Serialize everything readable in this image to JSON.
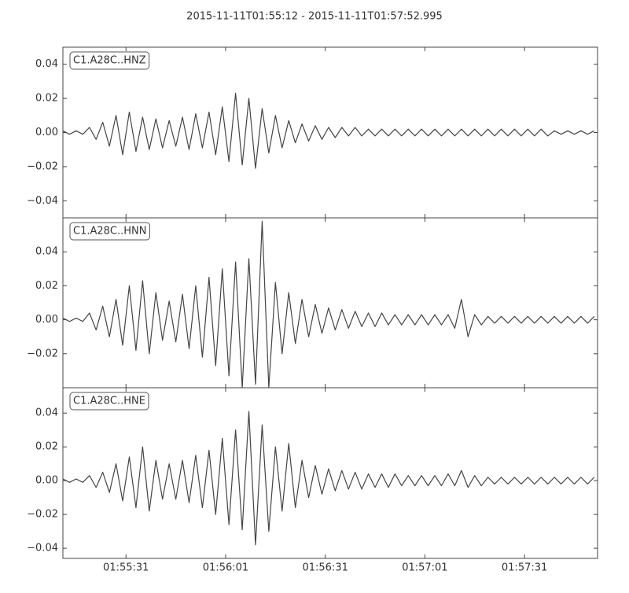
{
  "title": "2015-11-11T01:55:12  -  2015-11-11T01:57:52.995",
  "chart_data": [
    {
      "type": "line",
      "label": "C1.A28C..HNZ",
      "color": "#444444",
      "x": [
        "01:55:12",
        "01:55:14",
        "01:55:16",
        "01:55:18",
        "01:55:20",
        "01:55:22",
        "01:55:24",
        "01:55:26",
        "01:55:28",
        "01:55:30",
        "01:55:32",
        "01:55:34",
        "01:55:36",
        "01:55:38",
        "01:55:40",
        "01:55:42",
        "01:55:44",
        "01:55:46",
        "01:55:48",
        "01:55:50",
        "01:55:52",
        "01:55:54",
        "01:55:56",
        "01:55:58",
        "01:56:00",
        "01:56:02",
        "01:56:04",
        "01:56:06",
        "01:56:08",
        "01:56:10",
        "01:56:12",
        "01:56:14",
        "01:56:16",
        "01:56:18",
        "01:56:20",
        "01:56:22",
        "01:56:24",
        "01:56:26",
        "01:56:28",
        "01:56:30",
        "01:56:32",
        "01:56:34",
        "01:56:36",
        "01:56:38",
        "01:56:40",
        "01:56:42",
        "01:56:44",
        "01:56:46",
        "01:56:48",
        "01:56:50",
        "01:56:52",
        "01:56:54",
        "01:56:56",
        "01:56:58",
        "01:57:00",
        "01:57:02",
        "01:57:04",
        "01:57:06",
        "01:57:08",
        "01:57:10",
        "01:57:12",
        "01:57:14",
        "01:57:16",
        "01:57:18",
        "01:57:20",
        "01:57:22",
        "01:57:24",
        "01:57:26",
        "01:57:28",
        "01:57:30",
        "01:57:32",
        "01:57:34",
        "01:57:36",
        "01:57:38",
        "01:57:40",
        "01:57:42",
        "01:57:44",
        "01:57:46",
        "01:57:48",
        "01:57:50",
        "01:57:52"
      ],
      "values": [
        0.001,
        -0.001,
        0.001,
        -0.001,
        0.003,
        -0.004,
        0.006,
        -0.008,
        0.01,
        -0.013,
        0.012,
        -0.011,
        0.009,
        -0.01,
        0.008,
        -0.009,
        0.007,
        -0.008,
        0.009,
        -0.01,
        0.011,
        -0.009,
        0.012,
        -0.013,
        0.015,
        -0.017,
        0.023,
        -0.019,
        0.02,
        -0.021,
        0.014,
        -0.012,
        0.01,
        -0.009,
        0.007,
        -0.006,
        0.005,
        -0.005,
        0.004,
        -0.004,
        0.003,
        -0.003,
        0.003,
        -0.002,
        0.003,
        -0.002,
        0.002,
        -0.002,
        0.002,
        -0.002,
        0.002,
        -0.002,
        0.002,
        -0.002,
        0.002,
        -0.002,
        0.002,
        -0.002,
        0.002,
        -0.002,
        0.002,
        -0.002,
        0.002,
        -0.002,
        0.002,
        -0.002,
        0.002,
        -0.002,
        0.002,
        -0.002,
        0.002,
        -0.002,
        0.002,
        -0.002,
        0.001,
        -0.001,
        0.001,
        -0.001,
        0.001,
        -0.001,
        0.001
      ],
      "xlim": [
        "01:55:12",
        "01:57:52.995"
      ],
      "ylim": [
        -0.05,
        0.05
      ],
      "yticks": [
        {
          "value": -0.04,
          "label": "−0.04"
        },
        {
          "value": -0.02,
          "label": "−0.02"
        },
        {
          "value": 0,
          "label": "0.00"
        },
        0.02,
        0.04
      ]
    },
    {
      "type": "line",
      "label": "C1.A28C..HNN",
      "color": "#444444",
      "x": [
        "01:55:12",
        "01:55:14",
        "01:55:16",
        "01:55:18",
        "01:55:20",
        "01:55:22",
        "01:55:24",
        "01:55:26",
        "01:55:28",
        "01:55:30",
        "01:55:32",
        "01:55:34",
        "01:55:36",
        "01:55:38",
        "01:55:40",
        "01:55:42",
        "01:55:44",
        "01:55:46",
        "01:55:48",
        "01:55:50",
        "01:55:52",
        "01:55:54",
        "01:55:56",
        "01:55:58",
        "01:56:00",
        "01:56:02",
        "01:56:04",
        "01:56:06",
        "01:56:08",
        "01:56:10",
        "01:56:12",
        "01:56:14",
        "01:56:16",
        "01:56:18",
        "01:56:20",
        "01:56:22",
        "01:56:24",
        "01:56:26",
        "01:56:28",
        "01:56:30",
        "01:56:32",
        "01:56:34",
        "01:56:36",
        "01:56:38",
        "01:56:40",
        "01:56:42",
        "01:56:44",
        "01:56:46",
        "01:56:48",
        "01:56:50",
        "01:56:52",
        "01:56:54",
        "01:56:56",
        "01:56:58",
        "01:57:00",
        "01:57:02",
        "01:57:04",
        "01:57:06",
        "01:57:08",
        "01:57:10",
        "01:57:12",
        "01:57:14",
        "01:57:16",
        "01:57:18",
        "01:57:20",
        "01:57:22",
        "01:57:24",
        "01:57:26",
        "01:57:28",
        "01:57:30",
        "01:57:32",
        "01:57:34",
        "01:57:36",
        "01:57:38",
        "01:57:40",
        "01:57:42",
        "01:57:44",
        "01:57:46",
        "01:57:48",
        "01:57:50",
        "01:57:52"
      ],
      "values": [
        0.001,
        -0.001,
        0.001,
        -0.001,
        0.004,
        -0.006,
        0.008,
        -0.01,
        0.012,
        -0.015,
        0.02,
        -0.018,
        0.023,
        -0.02,
        0.016,
        -0.012,
        0.011,
        -0.013,
        0.015,
        -0.017,
        0.02,
        -0.022,
        0.025,
        -0.027,
        0.03,
        -0.033,
        0.034,
        -0.04,
        0.036,
        -0.038,
        0.058,
        -0.04,
        0.022,
        -0.02,
        0.016,
        -0.014,
        0.012,
        -0.01,
        0.009,
        -0.008,
        0.007,
        -0.006,
        0.006,
        -0.005,
        0.005,
        -0.004,
        0.004,
        -0.004,
        0.004,
        -0.003,
        0.003,
        -0.003,
        0.003,
        -0.003,
        0.003,
        -0.003,
        0.003,
        -0.003,
        0.003,
        -0.005,
        0.012,
        -0.01,
        0.003,
        -0.003,
        0.002,
        -0.002,
        0.002,
        -0.002,
        0.002,
        -0.002,
        0.002,
        -0.002,
        0.002,
        -0.002,
        0.002,
        -0.002,
        0.002,
        -0.002,
        0.002,
        -0.002,
        0.002
      ],
      "xlim": [
        "01:55:12",
        "01:57:52.995"
      ],
      "ylim": [
        -0.04,
        0.06
      ],
      "yticks": [
        {
          "value": -0.02,
          "label": "−0.02"
        },
        {
          "value": 0,
          "label": "0.00"
        },
        0.02,
        0.04
      ]
    },
    {
      "type": "line",
      "label": "C1.A28C..HNE",
      "color": "#444444",
      "x": [
        "01:55:12",
        "01:55:14",
        "01:55:16",
        "01:55:18",
        "01:55:20",
        "01:55:22",
        "01:55:24",
        "01:55:26",
        "01:55:28",
        "01:55:30",
        "01:55:32",
        "01:55:34",
        "01:55:36",
        "01:55:38",
        "01:55:40",
        "01:55:42",
        "01:55:44",
        "01:55:46",
        "01:55:48",
        "01:55:50",
        "01:55:52",
        "01:55:54",
        "01:55:56",
        "01:55:58",
        "01:56:00",
        "01:56:02",
        "01:56:04",
        "01:56:06",
        "01:56:08",
        "01:56:10",
        "01:56:12",
        "01:56:14",
        "01:56:16",
        "01:56:18",
        "01:56:20",
        "01:56:22",
        "01:56:24",
        "01:56:26",
        "01:56:28",
        "01:56:30",
        "01:56:32",
        "01:56:34",
        "01:56:36",
        "01:56:38",
        "01:56:40",
        "01:56:42",
        "01:56:44",
        "01:56:46",
        "01:56:48",
        "01:56:50",
        "01:56:52",
        "01:56:54",
        "01:56:56",
        "01:56:58",
        "01:57:00",
        "01:57:02",
        "01:57:04",
        "01:57:06",
        "01:57:08",
        "01:57:10",
        "01:57:12",
        "01:57:14",
        "01:57:16",
        "01:57:18",
        "01:57:20",
        "01:57:22",
        "01:57:24",
        "01:57:26",
        "01:57:28",
        "01:57:30",
        "01:57:32",
        "01:57:34",
        "01:57:36",
        "01:57:38",
        "01:57:40",
        "01:57:42",
        "01:57:44",
        "01:57:46",
        "01:57:48",
        "01:57:50",
        "01:57:52"
      ],
      "values": [
        0.001,
        -0.001,
        0.001,
        -0.001,
        0.003,
        -0.004,
        0.005,
        -0.007,
        0.01,
        -0.012,
        0.014,
        -0.016,
        0.02,
        -0.018,
        0.012,
        -0.011,
        0.01,
        -0.011,
        0.012,
        -0.013,
        0.015,
        -0.016,
        0.018,
        -0.02,
        0.025,
        -0.026,
        0.03,
        -0.029,
        0.041,
        -0.038,
        0.033,
        -0.03,
        0.02,
        -0.018,
        0.022,
        -0.016,
        0.012,
        -0.01,
        0.009,
        -0.008,
        0.007,
        -0.006,
        0.006,
        -0.005,
        0.005,
        -0.005,
        0.004,
        -0.004,
        0.004,
        -0.004,
        0.004,
        -0.003,
        0.003,
        -0.003,
        0.003,
        -0.003,
        0.003,
        -0.003,
        0.004,
        -0.003,
        0.006,
        -0.004,
        0.003,
        -0.003,
        0.002,
        -0.002,
        0.002,
        -0.002,
        0.002,
        -0.002,
        0.002,
        -0.002,
        0.002,
        -0.002,
        0.002,
        -0.002,
        0.002,
        -0.002,
        0.002,
        -0.002,
        0.002
      ],
      "xlim": [
        "01:55:12",
        "01:57:52.995"
      ],
      "ylim": [
        -0.046,
        0.055
      ],
      "yticks": [
        {
          "value": -0.04,
          "label": "−0.04"
        },
        {
          "value": -0.02,
          "label": "−0.02"
        },
        {
          "value": 0,
          "label": "0.00"
        },
        0.02,
        0.04
      ],
      "xticks": [
        "01:55:31",
        "01:56:01",
        "01:56:31",
        "01:57:01",
        "01:57:31"
      ]
    }
  ]
}
